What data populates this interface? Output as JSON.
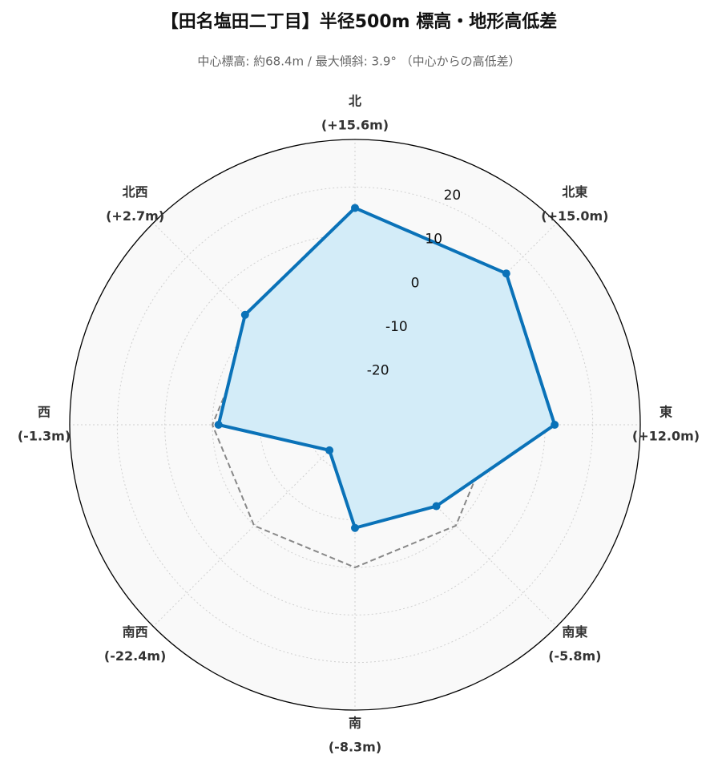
{
  "chart_data": {
    "type": "radar",
    "title": "【田名塩田二丁目】半径500m 標高・地形高低差",
    "subtitle": "中心標高: 約68.4m / 最大傾斜: 3.9° （中心からの高低差）",
    "categories": [
      "北",
      "北東",
      "東",
      "南東",
      "南",
      "南西",
      "西",
      "北西"
    ],
    "series": [
      {
        "color": "#0a72b8",
        "fill": "#d3ecf8",
        "values": [
          15.6,
          15.0,
          12.0,
          -5.8,
          -8.3,
          -22.4,
          -1.3,
          2.7
        ],
        "value_labels": [
          "(+15.6m)",
          "(+15.0m)",
          "(+12.0m)",
          "(-5.8m)",
          "(-8.3m)",
          "(-22.4m)",
          "(-1.3m)",
          "(+2.7m)"
        ]
      }
    ],
    "reference_line": 0,
    "ylim": [
      -30,
      30
    ],
    "yticks": [
      -20,
      -10,
      0,
      10,
      20
    ],
    "grid": true
  }
}
